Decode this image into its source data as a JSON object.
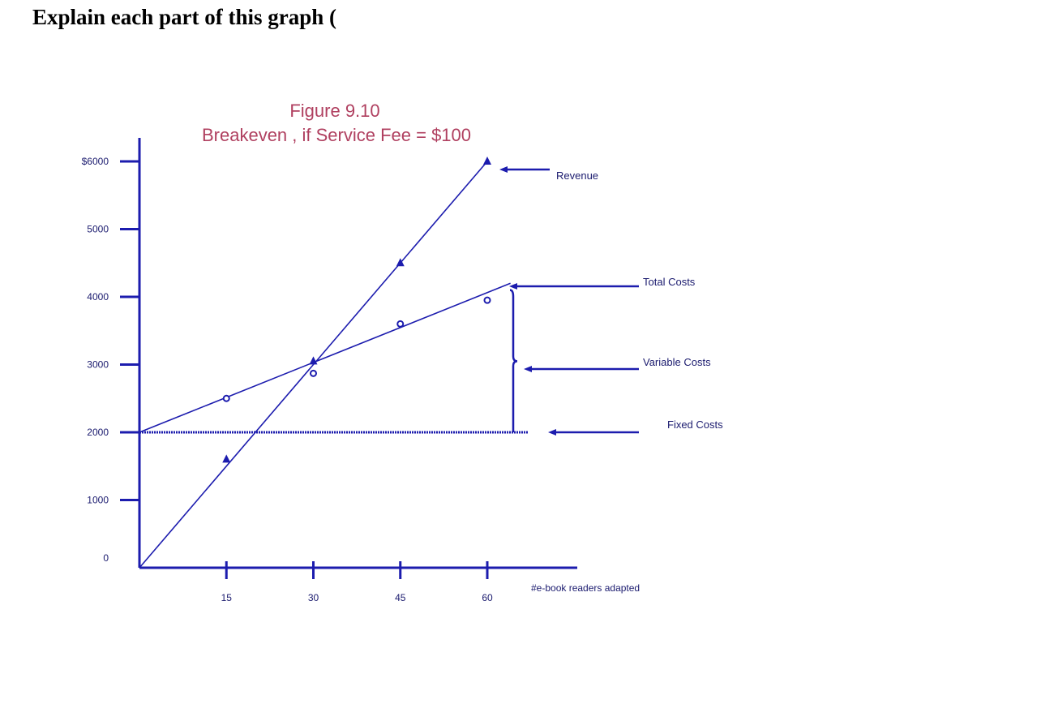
{
  "question": "Explain each part of this graph (",
  "colors": {
    "line": "#1c1cae",
    "title": "#b04060",
    "text": "#1a1a6e"
  },
  "chart_data": {
    "type": "line",
    "title": "Figure 9.10",
    "subtitle": "Breakeven , if Service Fee = $100",
    "xlabel": "#e-book readers adapted",
    "ylabel": "",
    "xlim": [
      0,
      60
    ],
    "ylim": [
      0,
      6000
    ],
    "x_ticks": [
      15,
      30,
      45,
      60
    ],
    "x_tick_labels": [
      "15",
      "30",
      "45",
      "60"
    ],
    "y_ticks": [
      0,
      1000,
      2000,
      3000,
      4000,
      5000,
      6000
    ],
    "y_tick_labels": [
      "0",
      "1000",
      "2000",
      "3000",
      "4000",
      "5000",
      "$6000"
    ],
    "series": [
      {
        "name": "Revenue",
        "marker": "triangle",
        "line": [
          [
            0,
            0
          ],
          [
            60,
            6000
          ]
        ],
        "points": [
          [
            15,
            1600
          ],
          [
            30,
            3050
          ],
          [
            45,
            4500
          ],
          [
            60,
            6000
          ]
        ]
      },
      {
        "name": "Total Costs",
        "marker": "circle",
        "line": [
          [
            0,
            2000
          ],
          [
            64,
            4200
          ]
        ],
        "points": [
          [
            15,
            2500
          ],
          [
            30,
            2870
          ],
          [
            45,
            3600
          ],
          [
            60,
            3950
          ]
        ]
      },
      {
        "name": "Fixed Costs",
        "marker": "none",
        "line": [
          [
            0,
            2000
          ],
          [
            67,
            2000
          ]
        ],
        "points": []
      }
    ],
    "annotations": [
      {
        "label": "Revenue"
      },
      {
        "label": "Total Costs"
      },
      {
        "label": "Variable Costs"
      },
      {
        "label": "Fixed  Costs"
      }
    ]
  }
}
